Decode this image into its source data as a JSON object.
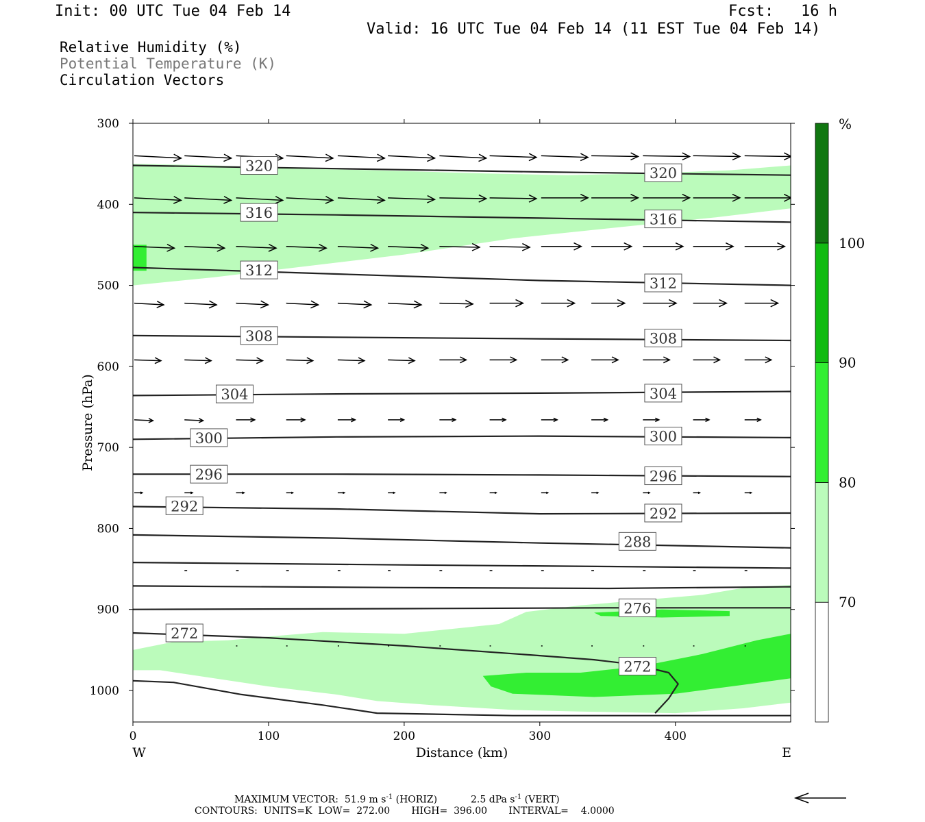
{
  "header": {
    "init": "Init: 00 UTC Tue 04 Feb 14",
    "fcst": "Fcst:   16 h",
    "valid": "Valid: 16 UTC Tue 04 Feb 14 (11 EST Tue 04 Feb 14)"
  },
  "legend": {
    "rh": "Relative Humidity (%)",
    "theta": "Potential Temperature (K)",
    "vectors": "Circulation Vectors"
  },
  "footer": {
    "max_vector_label": "MAXIMUM VECTOR:",
    "max_vector_horiz": "51.9 m s",
    "horiz_tag": "(HORIZ)",
    "max_vector_vert": "2.5 dPa s",
    "vert_tag": "(VERT)",
    "exponent": "-1",
    "contours_line": "CONTOURS:  UNITS=K  LOW=  272.00       HIGH=  396.00       INTERVAL=    4.0000"
  },
  "chart_data": {
    "type": "cross-section",
    "xlabel": "Distance (km)",
    "ylabel": "Pressure (hPa)",
    "x_end_labels": [
      "W",
      "E"
    ],
    "xlim": [
      0,
      485
    ],
    "ylim": [
      1030,
      300
    ],
    "x_ticks": [
      0,
      100,
      200,
      300,
      400
    ],
    "y_ticks": [
      300,
      400,
      500,
      600,
      700,
      800,
      900,
      1000
    ],
    "colorbar": {
      "unit_label": "%",
      "levels": [
        70,
        80,
        90,
        100
      ],
      "colors": [
        "#ffffff",
        "#bbfbbb",
        "#33ee33",
        "#11bb11",
        "#117711"
      ]
    },
    "rh_regions": [
      {
        "level": 80,
        "color": "#bbfbbb",
        "points": [
          [
            0,
            350
          ],
          [
            60,
            352
          ],
          [
            120,
            356
          ],
          [
            180,
            358
          ],
          [
            260,
            362
          ],
          [
            320,
            364
          ],
          [
            380,
            362
          ],
          [
            440,
            358
          ],
          [
            485,
            352
          ],
          [
            485,
            405
          ],
          [
            430,
            416
          ],
          [
            360,
            428
          ],
          [
            280,
            442
          ],
          [
            200,
            462
          ],
          [
            120,
            478
          ],
          [
            60,
            490
          ],
          [
            0,
            500
          ]
        ]
      },
      {
        "level": 90,
        "color": "#33ee33",
        "points": [
          [
            0,
            450
          ],
          [
            10,
            450
          ],
          [
            10,
            482
          ],
          [
            0,
            482
          ]
        ]
      },
      {
        "level": 80,
        "color": "#bbfbbb",
        "points": [
          [
            0,
            950
          ],
          [
            30,
            940
          ],
          [
            70,
            938
          ],
          [
            110,
            932
          ],
          [
            140,
            928
          ],
          [
            200,
            930
          ],
          [
            270,
            918
          ],
          [
            290,
            903
          ],
          [
            330,
            895
          ],
          [
            420,
            882
          ],
          [
            455,
            872
          ],
          [
            485,
            870
          ],
          [
            485,
            1015
          ],
          [
            450,
            1022
          ],
          [
            400,
            1028
          ],
          [
            330,
            1026
          ],
          [
            280,
            1024
          ],
          [
            220,
            1018
          ],
          [
            180,
            1013
          ],
          [
            150,
            1005
          ],
          [
            100,
            995
          ],
          [
            60,
            985
          ],
          [
            20,
            975
          ],
          [
            0,
            975
          ]
        ]
      },
      {
        "level": 90,
        "color": "#33ee33",
        "points": [
          [
            258,
            982
          ],
          [
            290,
            978
          ],
          [
            330,
            978
          ],
          [
            375,
            970
          ],
          [
            420,
            955
          ],
          [
            460,
            938
          ],
          [
            485,
            930
          ],
          [
            485,
            985
          ],
          [
            450,
            993
          ],
          [
            400,
            1004
          ],
          [
            340,
            1008
          ],
          [
            280,
            1004
          ],
          [
            264,
            995
          ]
        ]
      },
      {
        "level": 90,
        "color": "#33ee33",
        "points": [
          [
            340,
            904
          ],
          [
            390,
            900
          ],
          [
            440,
            902
          ],
          [
            440,
            908
          ],
          [
            390,
            910
          ],
          [
            345,
            908
          ]
        ]
      }
    ],
    "theta_contours": [
      {
        "label": "320",
        "points": [
          [
            0,
            352
          ],
          [
            150,
            356
          ],
          [
            300,
            360
          ],
          [
            485,
            364
          ]
        ],
        "labels_at": [
          [
            93,
            352
          ],
          [
            391,
            361
          ]
        ]
      },
      {
        "label": "316",
        "points": [
          [
            0,
            410
          ],
          [
            150,
            413
          ],
          [
            300,
            417
          ],
          [
            485,
            422
          ]
        ],
        "labels_at": [
          [
            93,
            410
          ],
          [
            391,
            418
          ]
        ]
      },
      {
        "label": "312",
        "points": [
          [
            0,
            478
          ],
          [
            150,
            486
          ],
          [
            300,
            494
          ],
          [
            485,
            500
          ]
        ],
        "labels_at": [
          [
            93,
            481
          ],
          [
            391,
            497
          ]
        ]
      },
      {
        "label": "308",
        "points": [
          [
            0,
            562
          ],
          [
            150,
            564
          ],
          [
            300,
            566
          ],
          [
            485,
            568
          ]
        ],
        "labels_at": [
          [
            93,
            562
          ],
          [
            391,
            565
          ]
        ]
      },
      {
        "label": "304",
        "points": [
          [
            0,
            636
          ],
          [
            150,
            634
          ],
          [
            300,
            633
          ],
          [
            485,
            631
          ]
        ],
        "labels_at": [
          [
            75,
            634
          ],
          [
            391,
            633
          ]
        ]
      },
      {
        "label": "300",
        "points": [
          [
            0,
            690
          ],
          [
            150,
            687
          ],
          [
            300,
            686
          ],
          [
            485,
            688
          ]
        ],
        "labels_at": [
          [
            56,
            688
          ],
          [
            391,
            686
          ]
        ]
      },
      {
        "label": "296",
        "points": [
          [
            0,
            733
          ],
          [
            150,
            733
          ],
          [
            300,
            734
          ],
          [
            485,
            736
          ]
        ],
        "labels_at": [
          [
            56,
            733
          ],
          [
            391,
            735
          ]
        ]
      },
      {
        "label": "292",
        "points": [
          [
            0,
            773
          ],
          [
            150,
            776
          ],
          [
            300,
            782
          ],
          [
            485,
            781
          ]
        ],
        "labels_at": [
          [
            38,
            772
          ],
          [
            391,
            781
          ]
        ]
      },
      {
        "label": "288",
        "points": [
          [
            0,
            808
          ],
          [
            150,
            812
          ],
          [
            300,
            818
          ],
          [
            485,
            824
          ]
        ],
        "labels_at": [
          [
            372,
            816
          ]
        ]
      },
      {
        "label": "",
        "points": [
          [
            0,
            842
          ],
          [
            200,
            845
          ],
          [
            350,
            847
          ],
          [
            485,
            849
          ]
        ],
        "labels_at": []
      },
      {
        "label": "",
        "points": [
          [
            0,
            871
          ],
          [
            200,
            873
          ],
          [
            350,
            874
          ],
          [
            485,
            872
          ]
        ],
        "labels_at": []
      },
      {
        "label": "276",
        "points": [
          [
            0,
            900
          ],
          [
            200,
            899
          ],
          [
            350,
            898
          ],
          [
            485,
            898
          ]
        ],
        "labels_at": [
          [
            372,
            898
          ]
        ]
      },
      {
        "label": "272",
        "points": [
          [
            0,
            929
          ],
          [
            100,
            935
          ],
          [
            200,
            945
          ],
          [
            300,
            957
          ],
          [
            340,
            962
          ],
          [
            370,
            968
          ],
          [
            395,
            978
          ],
          [
            402,
            992
          ],
          [
            395,
            1010
          ],
          [
            385,
            1028
          ]
        ],
        "labels_at": [
          [
            38,
            929
          ],
          [
            372,
            970
          ]
        ]
      },
      {
        "label": "",
        "points": [
          [
            0,
            988
          ],
          [
            30,
            990
          ],
          [
            80,
            1005
          ],
          [
            140,
            1018
          ],
          [
            180,
            1028
          ],
          [
            280,
            1031
          ],
          [
            485,
            1031
          ]
        ],
        "labels_at": []
      }
    ],
    "vector_rows": [
      {
        "p": 340,
        "x": [
          0,
          37,
          75,
          112,
          150,
          187,
          225,
          262,
          300,
          337,
          375,
          412,
          450
        ],
        "u": [
          35,
          35,
          35,
          35,
          35,
          35,
          35,
          35,
          35,
          35,
          35,
          35,
          35
        ],
        "w": [
          -3,
          -3,
          -3,
          -3,
          -3,
          -3,
          -3,
          -2,
          -2,
          -1,
          -1,
          -1,
          -1
        ]
      },
      {
        "p": 392,
        "x": [
          0,
          37,
          75,
          112,
          150,
          187,
          225,
          262,
          300,
          337,
          375,
          412,
          450
        ],
        "u": [
          35,
          35,
          35,
          35,
          35,
          35,
          35,
          35,
          35,
          35,
          35,
          35,
          35
        ],
        "w": [
          -3,
          -3,
          -3,
          -3,
          -3,
          -2,
          -1,
          -1,
          0,
          0,
          0,
          0,
          0
        ]
      },
      {
        "p": 452,
        "x": [
          0,
          37,
          75,
          112,
          150,
          187,
          225,
          262,
          300,
          337,
          375,
          412,
          450
        ],
        "u": [
          30,
          30,
          30,
          30,
          30,
          30,
          30,
          30,
          30,
          30,
          30,
          30,
          30
        ],
        "w": [
          -2,
          -2,
          -2,
          -2,
          -2,
          -2,
          -1,
          -1,
          0,
          0,
          0,
          0,
          0
        ]
      },
      {
        "p": 522,
        "x": [
          0,
          37,
          75,
          112,
          150,
          187,
          225,
          262,
          300,
          337,
          375,
          412,
          450
        ],
        "u": [
          22,
          24,
          24,
          24,
          25,
          25,
          25,
          25,
          25,
          25,
          25,
          25,
          25
        ],
        "w": [
          -2,
          -2,
          -2,
          -2,
          -2,
          -2,
          -1,
          0,
          0,
          0,
          0,
          0,
          0
        ]
      },
      {
        "p": 592,
        "x": [
          0,
          37,
          75,
          112,
          150,
          187,
          225,
          262,
          300,
          337,
          375,
          412,
          450
        ],
        "u": [
          20,
          20,
          20,
          20,
          20,
          20,
          20,
          20,
          20,
          20,
          20,
          20,
          20
        ],
        "w": [
          -1,
          -1,
          -1,
          -1,
          -1,
          -1,
          0,
          0,
          0,
          0,
          0,
          0,
          0
        ]
      },
      {
        "p": 666,
        "x": [
          0,
          37,
          75,
          112,
          150,
          187,
          225,
          262,
          300,
          337,
          375,
          412,
          450
        ],
        "u": [
          14,
          14,
          14,
          14,
          13,
          12,
          12,
          12,
          12,
          12,
          12,
          12,
          12
        ],
        "w": [
          -1,
          -1,
          0,
          0,
          0,
          0,
          0,
          0,
          0,
          0,
          0,
          0,
          0
        ]
      },
      {
        "p": 756,
        "x": [
          0,
          37,
          75,
          112,
          150,
          187,
          225,
          262,
          300,
          337,
          375,
          412,
          450
        ],
        "u": [
          6,
          6,
          6,
          5,
          5,
          5,
          5,
          5,
          5,
          5,
          5,
          5,
          5
        ],
        "w": [
          0,
          0,
          0,
          0,
          0,
          0,
          0,
          0,
          0,
          0,
          0,
          0,
          0
        ]
      },
      {
        "p": 852,
        "x": [
          37,
          75,
          112,
          150,
          187,
          225,
          262,
          300,
          337,
          375,
          412,
          450
        ],
        "u": [
          2,
          2,
          2,
          2,
          2,
          2,
          2,
          2,
          2,
          2,
          2,
          2
        ],
        "w": [
          0,
          0,
          0,
          0,
          0,
          0,
          0,
          0,
          0,
          0,
          0,
          0
        ]
      },
      {
        "p": 945,
        "x": [
          75,
          112,
          150,
          187,
          225,
          262,
          300,
          337,
          375,
          412,
          450
        ],
        "u": [
          1,
          1,
          1,
          1,
          1,
          1,
          1,
          1,
          1,
          1,
          1
        ],
        "w": [
          0,
          0,
          0,
          0,
          0,
          0,
          0,
          0,
          0,
          0,
          0
        ]
      }
    ]
  }
}
